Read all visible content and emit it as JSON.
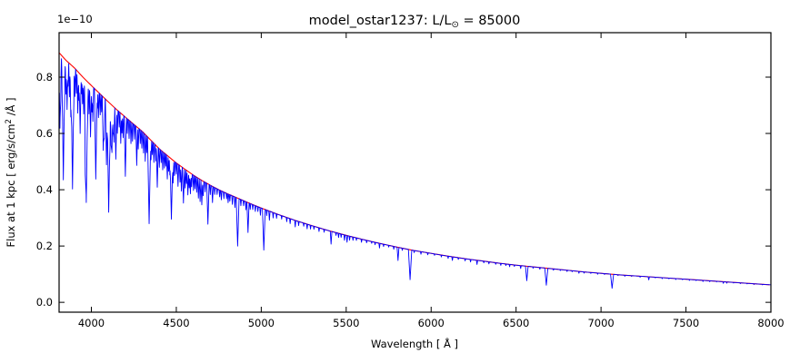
{
  "chart_data": {
    "type": "line",
    "title": "model_ostar1237: L/L⊙ = 85000",
    "title_parts": {
      "prefix": "model_ostar1237: L/L",
      "sun": "⊙",
      "suffix": " = 85000"
    },
    "xlabel": "Wavelength [ Å ]",
    "ylabel": "Flux at 1 kpc [ erg/s/cm² /Å ]",
    "ylabel_parts": {
      "prefix": "Flux at 1 kpc [ erg/s/cm",
      "sup": "2",
      "suffix": " /Å ]"
    },
    "y_offset_label": "1e−10",
    "xlim": [
      3810,
      8000
    ],
    "ylim": [
      -0.035,
      0.958
    ],
    "grid": false,
    "legend": "none",
    "xticks": [
      {
        "v": 4000,
        "label": "4000"
      },
      {
        "v": 4500,
        "label": "4500"
      },
      {
        "v": 5000,
        "label": "5000"
      },
      {
        "v": 5500,
        "label": "5500"
      },
      {
        "v": 6000,
        "label": "6000"
      },
      {
        "v": 6500,
        "label": "6500"
      },
      {
        "v": 7000,
        "label": "7000"
      },
      {
        "v": 7500,
        "label": "7500"
      },
      {
        "v": 8000,
        "label": "8000"
      }
    ],
    "yticks": [
      {
        "v": 0.0,
        "label": "0.0"
      },
      {
        "v": 0.2,
        "label": "0.2"
      },
      {
        "v": 0.4,
        "label": "0.4"
      },
      {
        "v": 0.6,
        "label": "0.6"
      },
      {
        "v": 0.8,
        "label": "0.8"
      }
    ],
    "series": [
      {
        "name": "continuum",
        "color": "#ff0000",
        "points": [
          [
            3810,
            0.887
          ],
          [
            3850,
            0.86
          ],
          [
            3900,
            0.833
          ],
          [
            3950,
            0.8
          ],
          [
            4000,
            0.77
          ],
          [
            4050,
            0.741
          ],
          [
            4100,
            0.712
          ],
          [
            4150,
            0.684
          ],
          [
            4200,
            0.658
          ],
          [
            4250,
            0.632
          ],
          [
            4300,
            0.607
          ],
          [
            4350,
            0.576
          ],
          [
            4400,
            0.545
          ],
          [
            4450,
            0.52
          ],
          [
            4500,
            0.495
          ],
          [
            4550,
            0.473
          ],
          [
            4600,
            0.452
          ],
          [
            4650,
            0.433
          ],
          [
            4700,
            0.416
          ],
          [
            4750,
            0.4
          ],
          [
            4800,
            0.386
          ],
          [
            4850,
            0.373
          ],
          [
            4900,
            0.36
          ],
          [
            4950,
            0.347
          ],
          [
            5000,
            0.335
          ],
          [
            5100,
            0.312
          ],
          [
            5200,
            0.291
          ],
          [
            5300,
            0.272
          ],
          [
            5400,
            0.254
          ],
          [
            5500,
            0.238
          ],
          [
            5600,
            0.223
          ],
          [
            5700,
            0.209
          ],
          [
            5800,
            0.196
          ],
          [
            5900,
            0.184
          ],
          [
            6000,
            0.174
          ],
          [
            6100,
            0.164
          ],
          [
            6200,
            0.155
          ],
          [
            6300,
            0.147
          ],
          [
            6400,
            0.139
          ],
          [
            6500,
            0.132
          ],
          [
            6600,
            0.126
          ],
          [
            6700,
            0.12
          ],
          [
            6800,
            0.114
          ],
          [
            6900,
            0.108
          ],
          [
            7000,
            0.103
          ],
          [
            7100,
            0.098
          ],
          [
            7200,
            0.094
          ],
          [
            7300,
            0.09
          ],
          [
            7400,
            0.086
          ],
          [
            7500,
            0.082
          ],
          [
            7600,
            0.078
          ],
          [
            7700,
            0.074
          ],
          [
            7800,
            0.07
          ],
          [
            7900,
            0.066
          ],
          [
            8000,
            0.062
          ]
        ]
      },
      {
        "name": "spectrum",
        "color": "#0000ff",
        "baseline": "continuum",
        "absorption_lines": [
          [
            3815,
            0.3
          ],
          [
            3820,
            0.12
          ],
          [
            3827,
            0.08
          ],
          [
            3835,
            0.5
          ],
          [
            3843,
            0.1
          ],
          [
            3850,
            0.14
          ],
          [
            3857,
            0.2
          ],
          [
            3863,
            0.1
          ],
          [
            3871,
            0.14
          ],
          [
            3879,
            0.22
          ],
          [
            3889,
            0.52
          ],
          [
            3897,
            0.08
          ],
          [
            3903,
            0.12
          ],
          [
            3912,
            0.1
          ],
          [
            3920,
            0.18
          ],
          [
            3927,
            0.12
          ],
          [
            3934,
            0.26
          ],
          [
            3942,
            0.08
          ],
          [
            3948,
            0.12
          ],
          [
            3955,
            0.16
          ],
          [
            3964,
            0.22
          ],
          [
            3970,
            0.55
          ],
          [
            3979,
            0.1
          ],
          [
            3986,
            0.14
          ],
          [
            3995,
            0.24
          ],
          [
            4003,
            0.12
          ],
          [
            4009,
            0.16
          ],
          [
            4026,
            0.42
          ],
          [
            4035,
            0.08
          ],
          [
            4042,
            0.12
          ],
          [
            4052,
            0.1
          ],
          [
            4060,
            0.08
          ],
          [
            4070,
            0.26
          ],
          [
            4076,
            0.2
          ],
          [
            4089,
            0.32
          ],
          [
            4102,
            0.55
          ],
          [
            4110,
            0.12
          ],
          [
            4116,
            0.18
          ],
          [
            4121,
            0.24
          ],
          [
            4128,
            0.14
          ],
          [
            4133,
            0.18
          ],
          [
            4144,
            0.26
          ],
          [
            4153,
            0.12
          ],
          [
            4164,
            0.08
          ],
          [
            4173,
            0.16
          ],
          [
            4180,
            0.1
          ],
          [
            4187,
            0.12
          ],
          [
            4200,
            0.32
          ],
          [
            4211,
            0.08
          ],
          [
            4222,
            0.1
          ],
          [
            4233,
            0.12
          ],
          [
            4242,
            0.1
          ],
          [
            4254,
            0.08
          ],
          [
            4267,
            0.22
          ],
          [
            4276,
            0.12
          ],
          [
            4288,
            0.08
          ],
          [
            4297,
            0.1
          ],
          [
            4307,
            0.12
          ],
          [
            4317,
            0.16
          ],
          [
            4326,
            0.1
          ],
          [
            4340,
            0.52
          ],
          [
            4351,
            0.12
          ],
          [
            4359,
            0.08
          ],
          [
            4368,
            0.12
          ],
          [
            4379,
            0.1
          ],
          [
            4388,
            0.26
          ],
          [
            4400,
            0.12
          ],
          [
            4411,
            0.08
          ],
          [
            4420,
            0.12
          ],
          [
            4430,
            0.1
          ],
          [
            4438,
            0.08
          ],
          [
            4447,
            0.16
          ],
          [
            4455,
            0.1
          ],
          [
            4462,
            0.12
          ],
          [
            4471,
            0.42
          ],
          [
            4481,
            0.16
          ],
          [
            4489,
            0.1
          ],
          [
            4500,
            0.08
          ],
          [
            4510,
            0.16
          ],
          [
            4522,
            0.12
          ],
          [
            4530,
            0.18
          ],
          [
            4542,
            0.26
          ],
          [
            4552,
            0.14
          ],
          [
            4560,
            0.1
          ],
          [
            4568,
            0.18
          ],
          [
            4576,
            0.12
          ],
          [
            4583,
            0.16
          ],
          [
            4590,
            0.1
          ],
          [
            4601,
            0.12
          ],
          [
            4610,
            0.1
          ],
          [
            4620,
            0.12
          ],
          [
            4630,
            0.16
          ],
          [
            4640,
            0.18
          ],
          [
            4650,
            0.2
          ],
          [
            4658,
            0.12
          ],
          [
            4670,
            0.08
          ],
          [
            4686,
            0.34
          ],
          [
            4700,
            0.08
          ],
          [
            4713,
            0.14
          ],
          [
            4726,
            0.06
          ],
          [
            4740,
            0.05
          ],
          [
            4755,
            0.06
          ],
          [
            4765,
            0.08
          ],
          [
            4780,
            0.06
          ],
          [
            4796,
            0.05
          ],
          [
            4805,
            0.08
          ],
          [
            4815,
            0.06
          ],
          [
            4830,
            0.08
          ],
          [
            4845,
            0.1
          ],
          [
            4861,
            0.46
          ],
          [
            4880,
            0.06
          ],
          [
            4896,
            0.05
          ],
          [
            4910,
            0.08
          ],
          [
            4922,
            0.3
          ],
          [
            4935,
            0.06
          ],
          [
            4950,
            0.05
          ],
          [
            4965,
            0.06
          ],
          [
            4980,
            0.05
          ],
          [
            4995,
            0.08
          ],
          [
            5015,
            0.44
          ],
          [
            5032,
            0.06
          ],
          [
            5048,
            0.1
          ],
          [
            5070,
            0.06
          ],
          [
            5090,
            0.05
          ],
          [
            5120,
            0.04
          ],
          [
            5150,
            0.05
          ],
          [
            5170,
            0.06
          ],
          [
            5200,
            0.08
          ],
          [
            5220,
            0.05
          ],
          [
            5250,
            0.04
          ],
          [
            5270,
            0.06
          ],
          [
            5290,
            0.05
          ],
          [
            5310,
            0.04
          ],
          [
            5340,
            0.05
          ],
          [
            5370,
            0.04
          ],
          [
            5411,
            0.18
          ],
          [
            5440,
            0.04
          ],
          [
            5455,
            0.06
          ],
          [
            5470,
            0.05
          ],
          [
            5490,
            0.08
          ],
          [
            5505,
            0.1
          ],
          [
            5520,
            0.06
          ],
          [
            5540,
            0.05
          ],
          [
            5560,
            0.04
          ],
          [
            5590,
            0.05
          ],
          [
            5620,
            0.04
          ],
          [
            5650,
            0.03
          ],
          [
            5670,
            0.04
          ],
          [
            5696,
            0.08
          ],
          [
            5720,
            0.04
          ],
          [
            5750,
            0.03
          ],
          [
            5780,
            0.05
          ],
          [
            5805,
            0.24
          ],
          [
            5830,
            0.04
          ],
          [
            5876,
            0.57
          ],
          [
            5900,
            0.04
          ],
          [
            5940,
            0.05
          ],
          [
            5980,
            0.04
          ],
          [
            6020,
            0.03
          ],
          [
            6060,
            0.04
          ],
          [
            6100,
            0.05
          ],
          [
            6125,
            0.08
          ],
          [
            6160,
            0.04
          ],
          [
            6200,
            0.05
          ],
          [
            6232,
            0.06
          ],
          [
            6270,
            0.1
          ],
          [
            6310,
            0.04
          ],
          [
            6340,
            0.05
          ],
          [
            6380,
            0.04
          ],
          [
            6410,
            0.05
          ],
          [
            6440,
            0.04
          ],
          [
            6462,
            0.06
          ],
          [
            6490,
            0.04
          ],
          [
            6527,
            0.08
          ],
          [
            6563,
            0.4
          ],
          [
            6600,
            0.04
          ],
          [
            6640,
            0.05
          ],
          [
            6678,
            0.5
          ],
          [
            6720,
            0.04
          ],
          [
            6760,
            0.03
          ],
          [
            6800,
            0.04
          ],
          [
            6830,
            0.03
          ],
          [
            6870,
            0.06
          ],
          [
            6900,
            0.04
          ],
          [
            6940,
            0.03
          ],
          [
            6980,
            0.04
          ],
          [
            7020,
            0.03
          ],
          [
            7065,
            0.5
          ],
          [
            7100,
            0.03
          ],
          [
            7140,
            0.04
          ],
          [
            7180,
            0.03
          ],
          [
            7230,
            0.04
          ],
          [
            7281,
            0.12
          ],
          [
            7320,
            0.03
          ],
          [
            7360,
            0.04
          ],
          [
            7400,
            0.03
          ],
          [
            7440,
            0.04
          ],
          [
            7480,
            0.03
          ],
          [
            7520,
            0.04
          ],
          [
            7560,
            0.03
          ],
          [
            7600,
            0.05
          ],
          [
            7640,
            0.04
          ],
          [
            7680,
            0.03
          ],
          [
            7720,
            0.08
          ],
          [
            7740,
            0.06
          ],
          [
            7780,
            0.03
          ],
          [
            7820,
            0.04
          ],
          [
            7860,
            0.03
          ],
          [
            7900,
            0.04
          ],
          [
            7950,
            0.03
          ]
        ]
      }
    ]
  },
  "colors": {
    "spectrum": "#0000ff",
    "continuum": "#ff0000",
    "frame": "#000000",
    "background": "#ffffff"
  }
}
